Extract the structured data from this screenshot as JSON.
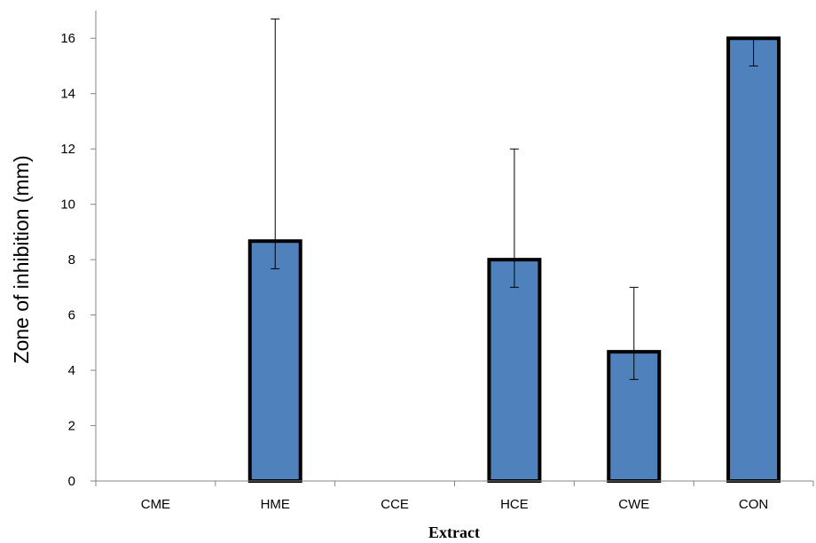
{
  "chart_data": {
    "type": "bar",
    "title": "",
    "xlabel": "Extract",
    "ylabel": "Zone of inhibition (mm)",
    "categories": [
      "CME",
      "HME",
      "CCE",
      "HCE",
      "CWE",
      "CON"
    ],
    "values": [
      0,
      8.67,
      0,
      8,
      4.67,
      16
    ],
    "error_low": [
      0,
      7.67,
      0,
      7,
      3.67,
      15
    ],
    "error_high": [
      0,
      16.7,
      0,
      12,
      7,
      16
    ],
    "ylim": [
      0,
      17
    ],
    "yticks": [
      0,
      2,
      4,
      6,
      8,
      10,
      12,
      14,
      16
    ],
    "grid": false,
    "legend": "none",
    "bar_color": "#4f81bd",
    "bar_edge_color": "#000000"
  }
}
